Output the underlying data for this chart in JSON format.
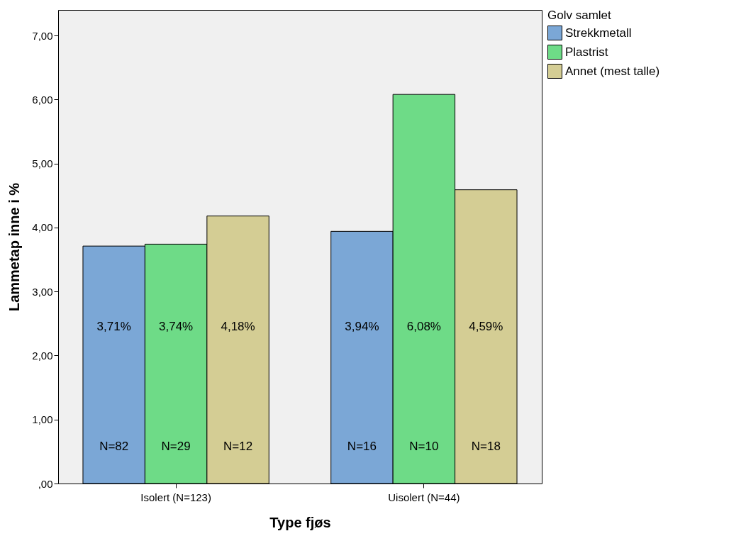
{
  "chart_data": {
    "type": "bar",
    "xlabel": "Type fjøs",
    "ylabel": "Lammetap inne i %",
    "legend_title": "Golv samlet",
    "categories": [
      "Isolert (N=123)",
      "Uisolert (N=44)"
    ],
    "series": [
      {
        "name": "Strekkmetall",
        "color": "#7ba7d6",
        "values": [
          3.71,
          3.94
        ],
        "value_labels": [
          "3,71%",
          "3,94%"
        ]
      },
      {
        "name": "Plastrist",
        "color": "#6edb87",
        "values": [
          3.74,
          6.08
        ],
        "value_labels": [
          "3,74%",
          "6,08%"
        ]
      },
      {
        "name": "Annet (mest talle)",
        "color": "#d4cd94",
        "values": [
          4.18,
          4.59
        ],
        "value_labels": [
          "4,18%",
          "4,59%"
        ]
      }
    ],
    "ylim": [
      0,
      7.4
    ],
    "yticks": [
      {
        "value": 0,
        "label": ",00"
      },
      {
        "value": 1,
        "label": "1,00"
      },
      {
        "value": 2,
        "label": "2,00"
      },
      {
        "value": 3,
        "label": "3,00"
      },
      {
        "value": 4,
        "label": "4,00"
      },
      {
        "value": 5,
        "label": "5,00"
      },
      {
        "value": 6,
        "label": "6,00"
      },
      {
        "value": 7,
        "label": "7,00"
      }
    ],
    "grid": false,
    "legend": "top right",
    "annotations": [
      "N=82",
      "N=29",
      "N=12",
      "N=16",
      "N=10",
      "N=18"
    ]
  }
}
